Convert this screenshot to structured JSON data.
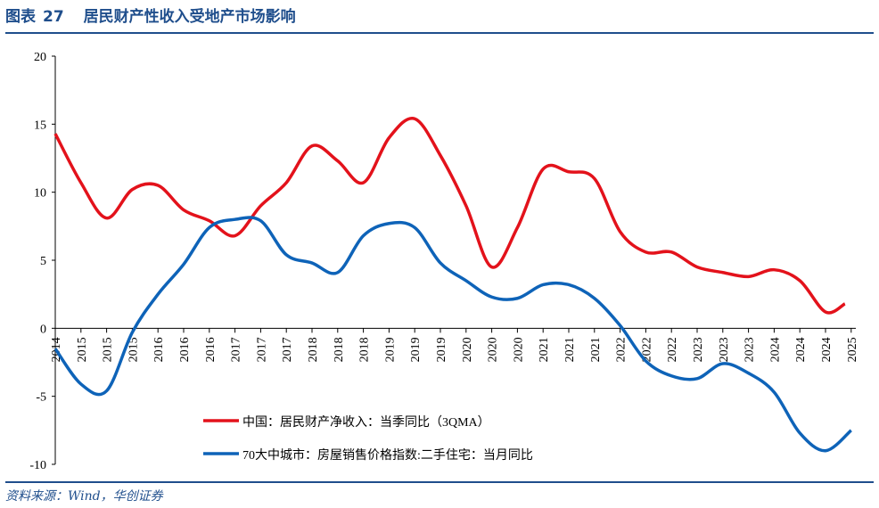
{
  "header": {
    "label": "图表",
    "number": "27",
    "title": "居民财产性收入受地产市场影响"
  },
  "source": "资料来源：Wind，华创证券",
  "chart_data": {
    "type": "line",
    "title": "",
    "xlabel": "",
    "ylabel": "",
    "ylim": [
      -10,
      20
    ],
    "yticks": [
      -10,
      -5,
      0,
      5,
      10,
      15,
      20
    ],
    "grid": false,
    "legend_position": "bottom-center",
    "categories": [
      "2014",
      "2015",
      "2015",
      "2015",
      "2016",
      "2016",
      "2016",
      "2017",
      "2017",
      "2017",
      "2018",
      "2018",
      "2018",
      "2019",
      "2019",
      "2019",
      "2020",
      "2020",
      "2020",
      "2021",
      "2021",
      "2021",
      "2022",
      "2022",
      "2022",
      "2023",
      "2023",
      "2023",
      "2024",
      "2024",
      "2024",
      "2025"
    ],
    "series": [
      {
        "name": "中国：居民财产净收入：当季同比（3QMA）",
        "color": "#e3121b",
        "values": [
          14.3,
          10.7,
          8.1,
          10.2,
          10.5,
          8.7,
          7.9,
          6.8,
          9.0,
          10.7,
          13.4,
          12.3,
          10.7,
          14.0,
          15.4,
          12.7,
          9.0,
          4.5,
          7.4,
          11.7,
          11.5,
          11.0,
          7.1,
          5.6,
          5.6,
          4.5,
          4.1,
          3.8,
          4.3,
          3.5,
          1.2,
          1.8
        ]
      },
      {
        "name": "70大中城市：房屋销售价格指数:二手住宅：当月同比",
        "color": "#0e63b8",
        "values": [
          -1.5,
          -4.1,
          -4.6,
          -0.3,
          2.5,
          4.7,
          7.4,
          8.0,
          7.9,
          5.4,
          4.8,
          4.1,
          6.8,
          7.7,
          7.4,
          4.8,
          3.5,
          2.3,
          2.2,
          3.2,
          3.2,
          2.2,
          0.2,
          -2.4,
          -3.5,
          -3.7,
          -2.6,
          -3.3,
          -4.7,
          -7.7,
          -9.0,
          -7.5
        ]
      }
    ]
  }
}
